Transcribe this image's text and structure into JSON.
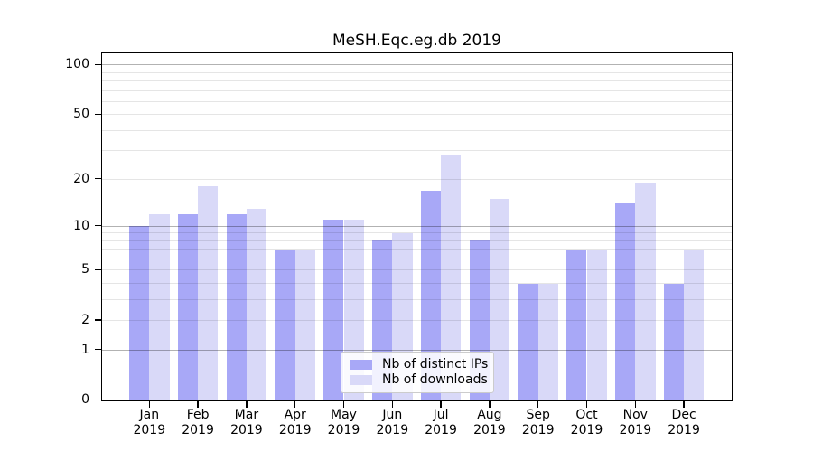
{
  "figure": {
    "title": "MeSH.Eqc.eg.db 2019"
  },
  "chart_data": {
    "type": "bar",
    "title": "MeSH.Eqc.eg.db 2019",
    "year_label": "2019",
    "categories": [
      "Jan",
      "Feb",
      "Mar",
      "Apr",
      "May",
      "Jun",
      "Jul",
      "Aug",
      "Sep",
      "Oct",
      "Nov",
      "Dec"
    ],
    "series": [
      {
        "name": "Nb of distinct IPs",
        "color": "#a8a8f7",
        "values": [
          10,
          12,
          12,
          7,
          11,
          8,
          17,
          8,
          4,
          7,
          14,
          4
        ]
      },
      {
        "name": "Nb of downloads",
        "color": "#d9d9f8",
        "values": [
          12,
          18,
          13,
          7,
          11,
          9,
          28,
          15,
          4,
          7,
          19,
          7
        ]
      }
    ],
    "y_axis": {
      "scale": "log10(1+v)",
      "tick_values": [
        0,
        1,
        2,
        5,
        10,
        20,
        50,
        100
      ],
      "range": [
        0,
        100
      ]
    },
    "x_axis": {
      "tick_label_line2": "2019"
    },
    "grid": true,
    "legend_position": "lower center"
  }
}
